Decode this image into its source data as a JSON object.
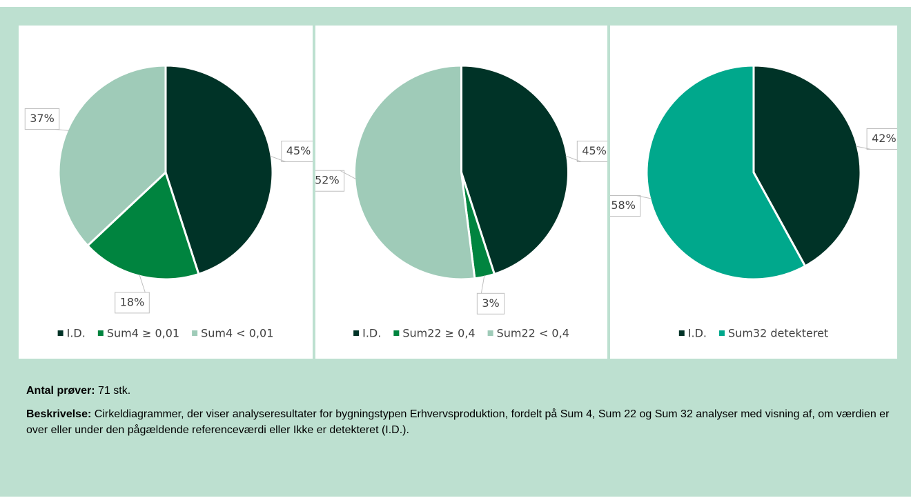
{
  "chart_data": [
    {
      "type": "pie",
      "categories": [
        "I.D.",
        "Sum4 ≥ 0,01",
        "Sum4 < 0,01"
      ],
      "values": [
        45,
        18,
        37
      ],
      "value_labels": [
        "45%",
        "18%",
        "37%"
      ],
      "colors": [
        "#003327",
        "#00843f",
        "#9fcbb8"
      ],
      "legend": "bottom"
    },
    {
      "type": "pie",
      "categories": [
        "I.D.",
        "Sum22 ≥ 0,4",
        "Sum22 < 0,4"
      ],
      "values": [
        45,
        3,
        52
      ],
      "value_labels": [
        "45%",
        "3%",
        "52%"
      ],
      "colors": [
        "#003327",
        "#00843f",
        "#9fcbb8"
      ],
      "legend": "bottom"
    },
    {
      "type": "pie",
      "categories": [
        "I.D.",
        "Sum32 detekteret"
      ],
      "values": [
        42,
        58
      ],
      "value_labels": [
        "42%",
        "58%"
      ],
      "colors": [
        "#003327",
        "#00a88c"
      ],
      "legend": "bottom"
    }
  ],
  "footer": {
    "samples_label": "Antal prøver:",
    "samples_text": "71 stk.",
    "description_label": "Beskrivelse:",
    "description_text": "Cirkeldiagrammer, der viser analyseresultater for bygningstypen Erhvervsproduktion, fordelt på Sum 4, Sum 22 og Sum 32 analyser med visning af, om værdien er over eller under den pågældende referenceværdi eller Ikke er detekteret (I.D.)."
  }
}
